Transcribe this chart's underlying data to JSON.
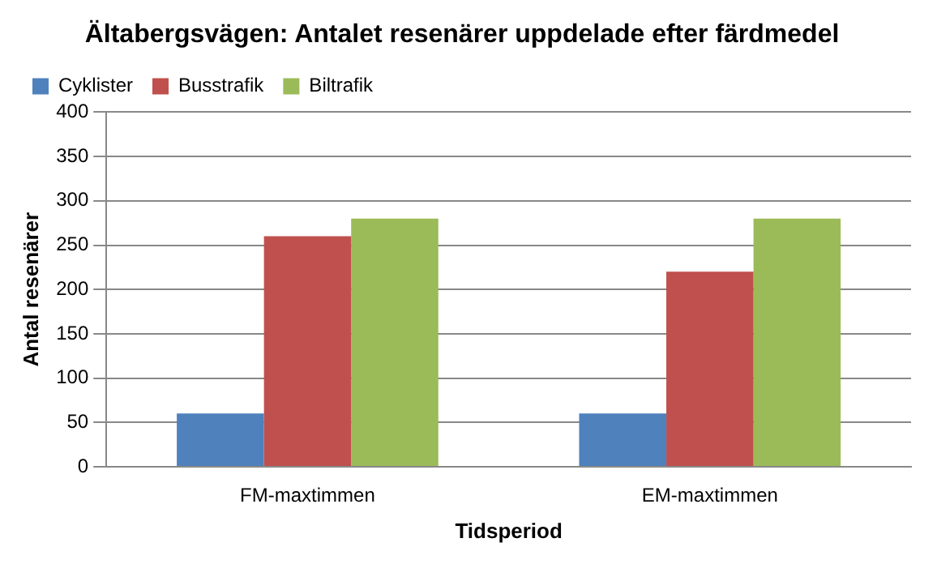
{
  "chart_data": {
    "type": "bar",
    "title": "Ältabergsvägen: Antalet resenärer uppdelade efter färdmedel",
    "xlabel": "Tidsperiod",
    "ylabel": "Antal resenärer",
    "categories": [
      "FM-maxtimmen",
      "EM-maxtimmen"
    ],
    "series": [
      {
        "name": "Cyklister",
        "color": "#4f81bd",
        "values": [
          60,
          60
        ]
      },
      {
        "name": "Busstrafik",
        "color": "#c0504d",
        "values": [
          260,
          220
        ]
      },
      {
        "name": "Biltrafik",
        "color": "#9bbb59",
        "values": [
          280,
          280
        ]
      }
    ],
    "ylim": [
      0,
      400
    ],
    "yticks": [
      0,
      50,
      100,
      150,
      200,
      250,
      300,
      350,
      400
    ],
    "grid": "y",
    "legend": "top left"
  }
}
